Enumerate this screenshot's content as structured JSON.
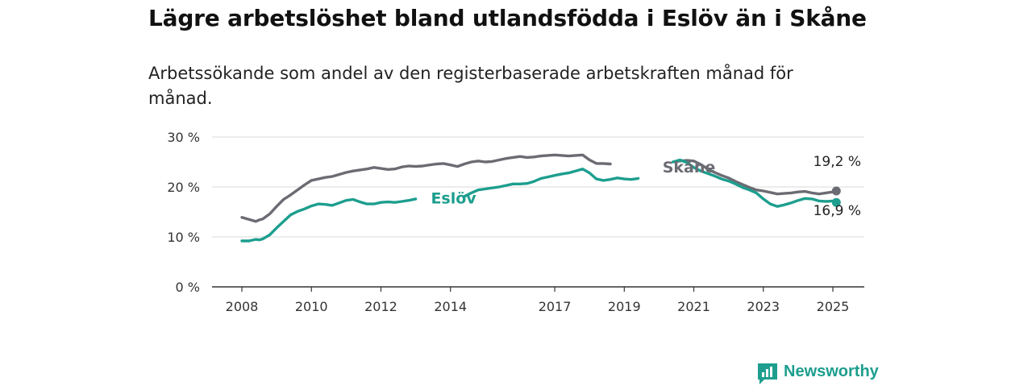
{
  "title": "Lägre arbetslöshet bland utlandsfödda i Eslöv än i Skåne",
  "subtitle": "Arbetssökande som andel av den registerbaserade arbetskraften månad för månad.",
  "brand": {
    "name": "Newsworthy",
    "color": "#1d9e8e"
  },
  "chart_data": {
    "type": "line",
    "ylim": [
      0,
      30
    ],
    "xlim": [
      2007.6,
      2025.9
    ],
    "y_ticks": [
      0,
      10,
      20,
      30
    ],
    "y_tick_labels": [
      "0 %",
      "10 %",
      "20 %",
      "30 %"
    ],
    "x_ticks": [
      2008,
      2010,
      2012,
      2014,
      2017,
      2019,
      2021,
      2023,
      2025
    ],
    "x_tick_labels": [
      "2008",
      "2010",
      "2012",
      "2014",
      "2017",
      "2019",
      "2021",
      "2023",
      "2025"
    ],
    "grid": true,
    "series": [
      {
        "name": "Skåne",
        "color": "#6b6b73",
        "end_label": "19,2 %",
        "x": [
          2008.0,
          2008.2,
          2008.4,
          2008.5,
          2008.6,
          2008.8,
          2009.0,
          2009.2,
          2009.4,
          2009.6,
          2009.8,
          2010.0,
          2010.2,
          2010.4,
          2010.6,
          2010.8,
          2011.0,
          2011.2,
          2011.4,
          2011.6,
          2011.8,
          2012.0,
          2012.2,
          2012.4,
          2012.6,
          2012.8,
          2013.0,
          2013.2,
          2013.4,
          2013.6,
          2013.8,
          2014.0,
          2014.2,
          2014.4,
          2014.6,
          2014.8,
          2015.0,
          2015.2,
          2015.4,
          2015.6,
          2015.8,
          2016.0,
          2016.2,
          2016.4,
          2016.6,
          2016.8,
          2017.0,
          2017.2,
          2017.4,
          2017.6,
          2017.8,
          2018.0,
          2018.2,
          2018.4,
          2018.6,
          2018.8,
          2019.0,
          2019.2,
          2019.4,
          2019.6,
          2019.8,
          2020.0,
          2020.2,
          2020.4,
          2020.6,
          2020.8,
          2021.0,
          2021.2,
          2021.4,
          2021.6,
          2021.8,
          2022.0,
          2022.2,
          2022.4,
          2022.6,
          2022.8,
          2023.0,
          2023.2,
          2023.4,
          2023.6,
          2023.8,
          2024.0,
          2024.2,
          2024.4,
          2024.6,
          2024.8,
          2025.0,
          2025.1
        ],
        "values": [
          13.9,
          13.5,
          13.1,
          13.4,
          13.6,
          14.6,
          16.1,
          17.5,
          18.4,
          19.4,
          20.4,
          21.3,
          21.6,
          21.9,
          22.1,
          22.5,
          22.9,
          23.2,
          23.4,
          23.6,
          23.9,
          23.7,
          23.5,
          23.6,
          24.0,
          24.2,
          24.1,
          24.2,
          24.4,
          24.6,
          24.7,
          24.4,
          24.1,
          24.6,
          25.0,
          25.2,
          25.0,
          25.1,
          25.4,
          25.7,
          25.9,
          26.1,
          25.9,
          26.0,
          26.2,
          26.3,
          26.4,
          26.3,
          26.2,
          26.3,
          26.4,
          25.4,
          24.7,
          24.7,
          24.6,
          24.5,
          24.3,
          24.1,
          23.7,
          23.6,
          24.0,
          24.2,
          24.6,
          25.0,
          25.2,
          25.3,
          25.2,
          24.5,
          23.6,
          22.9,
          22.3,
          21.8,
          21.1,
          20.5,
          19.9,
          19.4,
          19.2,
          18.9,
          18.6,
          18.7,
          18.8,
          19.0,
          19.1,
          18.8,
          18.6,
          18.8,
          19.0,
          19.2
        ],
        "gaps": [
          [
            2018.75,
            2019.6
          ],
          [
            2019.7,
            2020.35
          ]
        ]
      },
      {
        "name": "Eslöv",
        "color": "#1d9e8e",
        "end_label": "16,9 %",
        "x": [
          2008.0,
          2008.2,
          2008.4,
          2008.5,
          2008.6,
          2008.8,
          2009.0,
          2009.2,
          2009.4,
          2009.6,
          2009.8,
          2010.0,
          2010.2,
          2010.4,
          2010.6,
          2010.8,
          2011.0,
          2011.2,
          2011.4,
          2011.6,
          2011.8,
          2012.0,
          2012.2,
          2012.4,
          2012.6,
          2012.8,
          2013.0,
          2013.2,
          2013.4,
          2013.6,
          2013.8,
          2014.0,
          2014.2,
          2014.4,
          2014.6,
          2014.8,
          2015.0,
          2015.2,
          2015.4,
          2015.6,
          2015.8,
          2016.0,
          2016.2,
          2016.4,
          2016.6,
          2016.8,
          2017.0,
          2017.2,
          2017.4,
          2017.6,
          2017.8,
          2018.0,
          2018.2,
          2018.4,
          2018.6,
          2018.8,
          2019.0,
          2019.2,
          2019.4,
          2019.6,
          2019.8,
          2020.0,
          2020.2,
          2020.4,
          2020.6,
          2020.8,
          2021.0,
          2021.2,
          2021.4,
          2021.6,
          2021.8,
          2022.0,
          2022.2,
          2022.4,
          2022.6,
          2022.8,
          2023.0,
          2023.2,
          2023.4,
          2023.6,
          2023.8,
          2024.0,
          2024.2,
          2024.4,
          2024.6,
          2024.8,
          2025.0,
          2025.1
        ],
        "values": [
          9.2,
          9.2,
          9.5,
          9.4,
          9.6,
          10.4,
          11.8,
          13.1,
          14.4,
          15.1,
          15.6,
          16.2,
          16.6,
          16.5,
          16.3,
          16.8,
          17.3,
          17.5,
          17.0,
          16.6,
          16.6,
          16.9,
          17.0,
          16.9,
          17.1,
          17.3,
          17.6,
          17.8,
          17.7,
          17.9,
          18.0,
          17.8,
          17.6,
          18.1,
          18.8,
          19.4,
          19.6,
          19.8,
          20.0,
          20.3,
          20.6,
          20.6,
          20.7,
          21.1,
          21.7,
          22.0,
          22.3,
          22.6,
          22.8,
          23.2,
          23.6,
          22.8,
          21.6,
          21.3,
          21.5,
          21.8,
          21.6,
          21.5,
          21.7,
          21.9,
          22.3,
          22.6,
          23.8,
          25.0,
          25.4,
          24.9,
          23.9,
          23.2,
          22.7,
          22.2,
          21.6,
          21.2,
          20.6,
          19.9,
          19.4,
          18.8,
          17.6,
          16.6,
          16.1,
          16.4,
          16.8,
          17.3,
          17.7,
          17.6,
          17.2,
          17.1,
          17.2,
          16.9
        ],
        "gaps": [
          [
            2013.0,
            2014.35
          ],
          [
            2019.5,
            2020.3
          ]
        ]
      }
    ]
  }
}
